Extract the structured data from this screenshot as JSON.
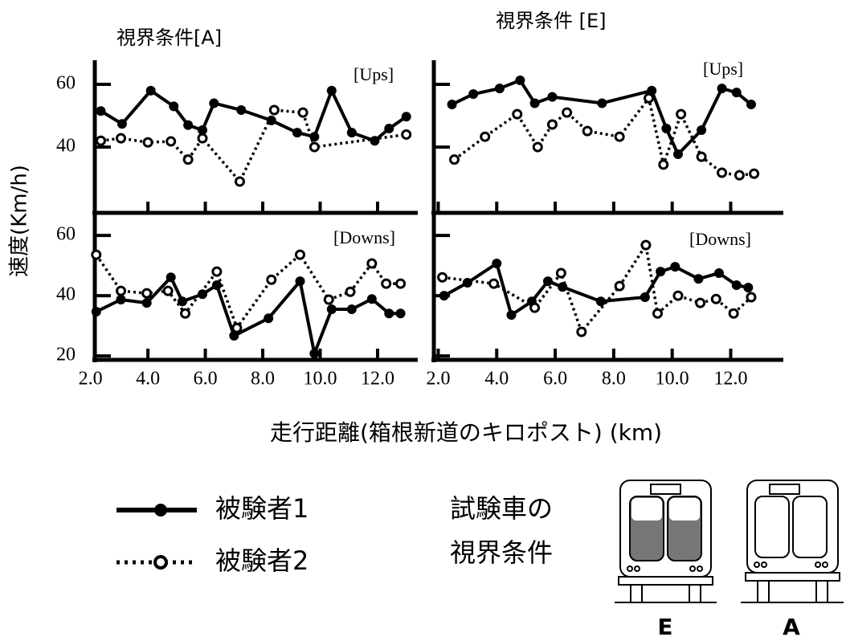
{
  "ylabel": "速度(Km/h)",
  "xlabel": "走行距離(箱根新道のキロポスト) (km)",
  "vehicle_legend": {
    "title": [
      "試験車の",
      "視界条件"
    ],
    "labels": [
      "E",
      "A"
    ]
  },
  "chart_data": [
    {
      "type": "line",
      "title": "視界条件[A]",
      "label": "[Ups]",
      "xlim": [
        2.15,
        13.4
      ],
      "ylim": [
        19,
        67.7
      ],
      "yticks": [
        40,
        60
      ],
      "series": [
        {
          "name": "被験者1",
          "color": "#000000",
          "line_style": "solid",
          "marker": "filled",
          "x": [
            2.36,
            3.1,
            4.1,
            4.9,
            5.4,
            5.9,
            6.3,
            7.25,
            8.3,
            9.2,
            9.8,
            10.4,
            11.1,
            11.9,
            12.4,
            13.0
          ],
          "values": [
            51.5,
            47.4,
            58,
            53,
            47,
            45.4,
            54,
            51.8,
            48.5,
            44.6,
            43.3,
            58,
            44.6,
            42,
            45.9,
            49.7
          ]
        },
        {
          "name": "被験者2",
          "color": "#000000",
          "line_style": "dotted",
          "marker": "open",
          "x": [
            2.36,
            3.06,
            4.0,
            4.8,
            5.4,
            5.9,
            7.2,
            8.4,
            9.4,
            9.8,
            13.0
          ],
          "values": [
            42,
            42.8,
            41.5,
            41.8,
            36,
            42.8,
            29,
            51.8,
            51,
            40,
            44
          ]
        }
      ]
    },
    {
      "type": "line",
      "title": "視界条件 [E]",
      "label": "[Ups]",
      "xlim": [
        1.85,
        13.8
      ],
      "ylim": [
        19,
        67.7
      ],
      "series": [
        {
          "color": "#000000",
          "line_style": "solid",
          "marker": "filled",
          "x": [
            2.47,
            3.2,
            4.1,
            4.8,
            5.3,
            5.9,
            7.6,
            9.3,
            9.8,
            10.2,
            11.0,
            11.7,
            12.2,
            12.7
          ],
          "values": [
            53.6,
            56.9,
            58.7,
            61.3,
            54,
            56,
            54,
            58,
            45.9,
            37.7,
            45.4,
            58.7,
            57.4,
            53.6
          ]
        },
        {
          "color": "#000000",
          "line_style": "dotted",
          "marker": "open",
          "x": [
            2.55,
            3.6,
            4.7,
            5.4,
            5.9,
            6.4,
            7.1,
            8.2,
            9.2,
            9.7,
            10.3,
            11.0,
            11.7,
            12.3,
            12.8
          ],
          "values": [
            36,
            43.3,
            50.5,
            40,
            47.2,
            51,
            45.1,
            43.3,
            55.6,
            34.4,
            50.5,
            36.9,
            31.8,
            31,
            31.5
          ]
        }
      ]
    },
    {
      "type": "line",
      "label": "[Downs]",
      "xlim": [
        2.15,
        13.4
      ],
      "ylim": [
        18.7,
        66.7
      ],
      "xticks": [
        {
          "value": 2,
          "label": "2.0"
        },
        {
          "value": 4,
          "label": "4.0"
        },
        {
          "value": 6,
          "label": "6.0"
        },
        {
          "value": 8,
          "label": "8.0"
        },
        {
          "value": 10,
          "label": "10.0"
        },
        {
          "value": 12,
          "label": "12.0"
        }
      ],
      "yticks": [
        20,
        40,
        60
      ],
      "series": [
        {
          "color": "#000000",
          "line_style": "solid",
          "marker": "filled",
          "x": [
            2.2,
            3.06,
            3.96,
            4.8,
            5.2,
            5.9,
            6.4,
            7.0,
            8.2,
            9.3,
            9.8,
            10.4,
            11.1,
            11.8,
            12.4,
            12.8
          ],
          "values": [
            34.7,
            38.7,
            37.6,
            46.1,
            38.1,
            40.5,
            43.5,
            26.7,
            32.5,
            44.8,
            20.8,
            35.5,
            35.5,
            38.9,
            34.1,
            34.1
          ]
        },
        {
          "color": "#000000",
          "line_style": "dotted",
          "marker": "open",
          "x": [
            2.2,
            3.06,
            3.96,
            4.7,
            5.3,
            6.4,
            7.1,
            8.3,
            9.3,
            10.3,
            11.05,
            11.8,
            12.3,
            12.8
          ],
          "values": [
            53.6,
            41.6,
            40.8,
            41.6,
            34.1,
            48,
            29.3,
            45.3,
            53.6,
            38.7,
            41.3,
            50.7,
            44,
            44
          ]
        }
      ]
    },
    {
      "type": "line",
      "label": "[Downs]",
      "xlim": [
        1.85,
        13.8
      ],
      "ylim": [
        18.7,
        66.7
      ],
      "xticks": [
        {
          "value": 2,
          "label": "2.0"
        },
        {
          "value": 4,
          "label": "4.0"
        },
        {
          "value": 6,
          "label": "6.0"
        },
        {
          "value": 8,
          "label": "8.0"
        },
        {
          "value": 10,
          "label": "10.0"
        },
        {
          "value": 12,
          "label": "12.0"
        }
      ],
      "series": [
        {
          "color": "#000000",
          "line_style": "solid",
          "marker": "filled",
          "x": [
            2.2,
            3.0,
            4.0,
            4.5,
            5.2,
            5.75,
            6.25,
            7.56,
            9.07,
            9.6,
            10.1,
            10.9,
            11.6,
            12.2,
            12.6
          ],
          "values": [
            40,
            44.3,
            50.7,
            33.6,
            38.1,
            44.8,
            42.9,
            38.1,
            39.5,
            48,
            49.6,
            45.6,
            47.5,
            43.5,
            42.7
          ]
        },
        {
          "color": "#000000",
          "line_style": "dotted",
          "marker": "open",
          "x": [
            2.14,
            3.9,
            5.3,
            6.2,
            6.9,
            8.2,
            9.1,
            9.5,
            10.2,
            10.96,
            11.5,
            12.1,
            12.7
          ],
          "values": [
            46.1,
            44,
            36,
            47.5,
            28,
            43.2,
            56.8,
            34.1,
            40,
            37.6,
            38.9,
            34.1,
            39.5
          ]
        }
      ]
    }
  ]
}
